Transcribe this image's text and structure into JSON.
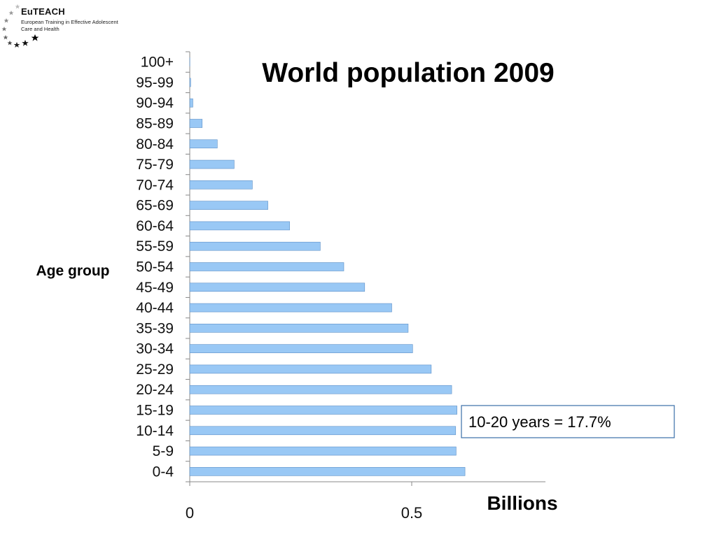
{
  "logo": {
    "name": "EuTEACH",
    "line1": "European Training in Effective Adolescent",
    "line2": "Care and Health"
  },
  "chart_data": {
    "type": "bar",
    "orientation": "horizontal",
    "title": "World population 2009",
    "xlabel": "Billions",
    "ylabel": "Age group",
    "categories": [
      "100+",
      "95-99",
      "90-94",
      "85-89",
      "80-84",
      "75-79",
      "70-74",
      "65-69",
      "60-64",
      "55-59",
      "50-54",
      "45-49",
      "40-44",
      "35-39",
      "30-34",
      "25-29",
      "20-24",
      "15-19",
      "10-14",
      "5-9",
      "0-4"
    ],
    "values": [
      0.0003,
      0.002,
      0.007,
      0.028,
      0.062,
      0.1,
      0.141,
      0.176,
      0.225,
      0.294,
      0.347,
      0.394,
      0.455,
      0.492,
      0.502,
      0.544,
      0.59,
      0.602,
      0.599,
      0.6,
      0.62
    ],
    "xticks": [
      {
        "value": 0,
        "label": "0"
      },
      {
        "value": 0.5,
        "label": "0.5"
      }
    ],
    "xlim": [
      0,
      0.8
    ],
    "bar_color": "#99c8f5",
    "bar_edge_color": "#5d8fc6",
    "grid": false,
    "annotation": {
      "text": "10-20 years = 17.7%",
      "border_color": "#3a6fa8"
    }
  }
}
